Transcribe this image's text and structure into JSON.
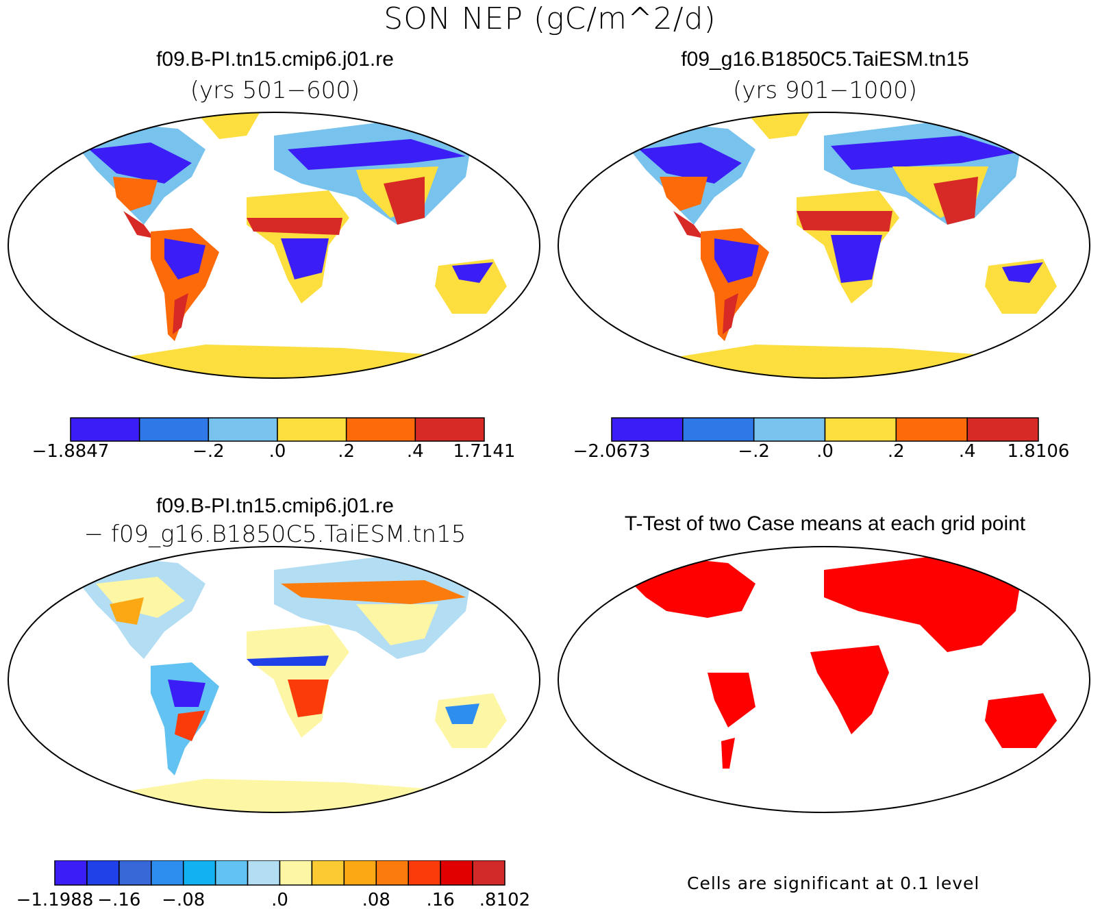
{
  "title": "SON NEP (gC/m^2/d)",
  "panels": [
    {
      "title": "f09.B-PI.tn15.cmip6.j01.re",
      "subtitle": "(yrs 501−600)"
    },
    {
      "title": "f09_g16.B1850C5.TaiESM.tn15",
      "subtitle": "(yrs 901−1000)"
    },
    {
      "title": "f09.B-PI.tn15.cmip6.j01.re",
      "subtitle": "− f09_g16.B1850C5.TaiESM.tn15"
    },
    {
      "title": "T-Test of two Case means at each grid point"
    }
  ],
  "colorbars": [
    {
      "colors": [
        "#3a1ef5",
        "#2f78e8",
        "#78c2ee",
        "#fcde3e",
        "#fd6a0a",
        "#d72a26"
      ],
      "labels": [
        "−1.8847",
        "−.2",
        ".0",
        ".2",
        ".4",
        "1.7141"
      ]
    },
    {
      "colors": [
        "#3a1ef5",
        "#2f78e8",
        "#78c2ee",
        "#fcde3e",
        "#fd6a0a",
        "#d72a26"
      ],
      "labels": [
        "−2.0673",
        "−.2",
        ".0",
        ".2",
        ".4",
        "1.8106"
      ]
    },
    {
      "colors": [
        "#3a1ef5",
        "#2040e8",
        "#3868d8",
        "#2e8ef0",
        "#12b2f0",
        "#62c3f2",
        "#b2ddf3",
        "#fdf6a4",
        "#fccb34",
        "#fba814",
        "#fb7b0c",
        "#fb3c0a",
        "#e00000",
        "#d12a28"
      ],
      "labels": [
        "−1.1988",
        "−.16",
        "−.08",
        ".0",
        ".08",
        ".16",
        ".8102"
      ]
    }
  ],
  "significance_note": "Cells are significant at 0.1 level",
  "significance_color": "#ff0000"
}
